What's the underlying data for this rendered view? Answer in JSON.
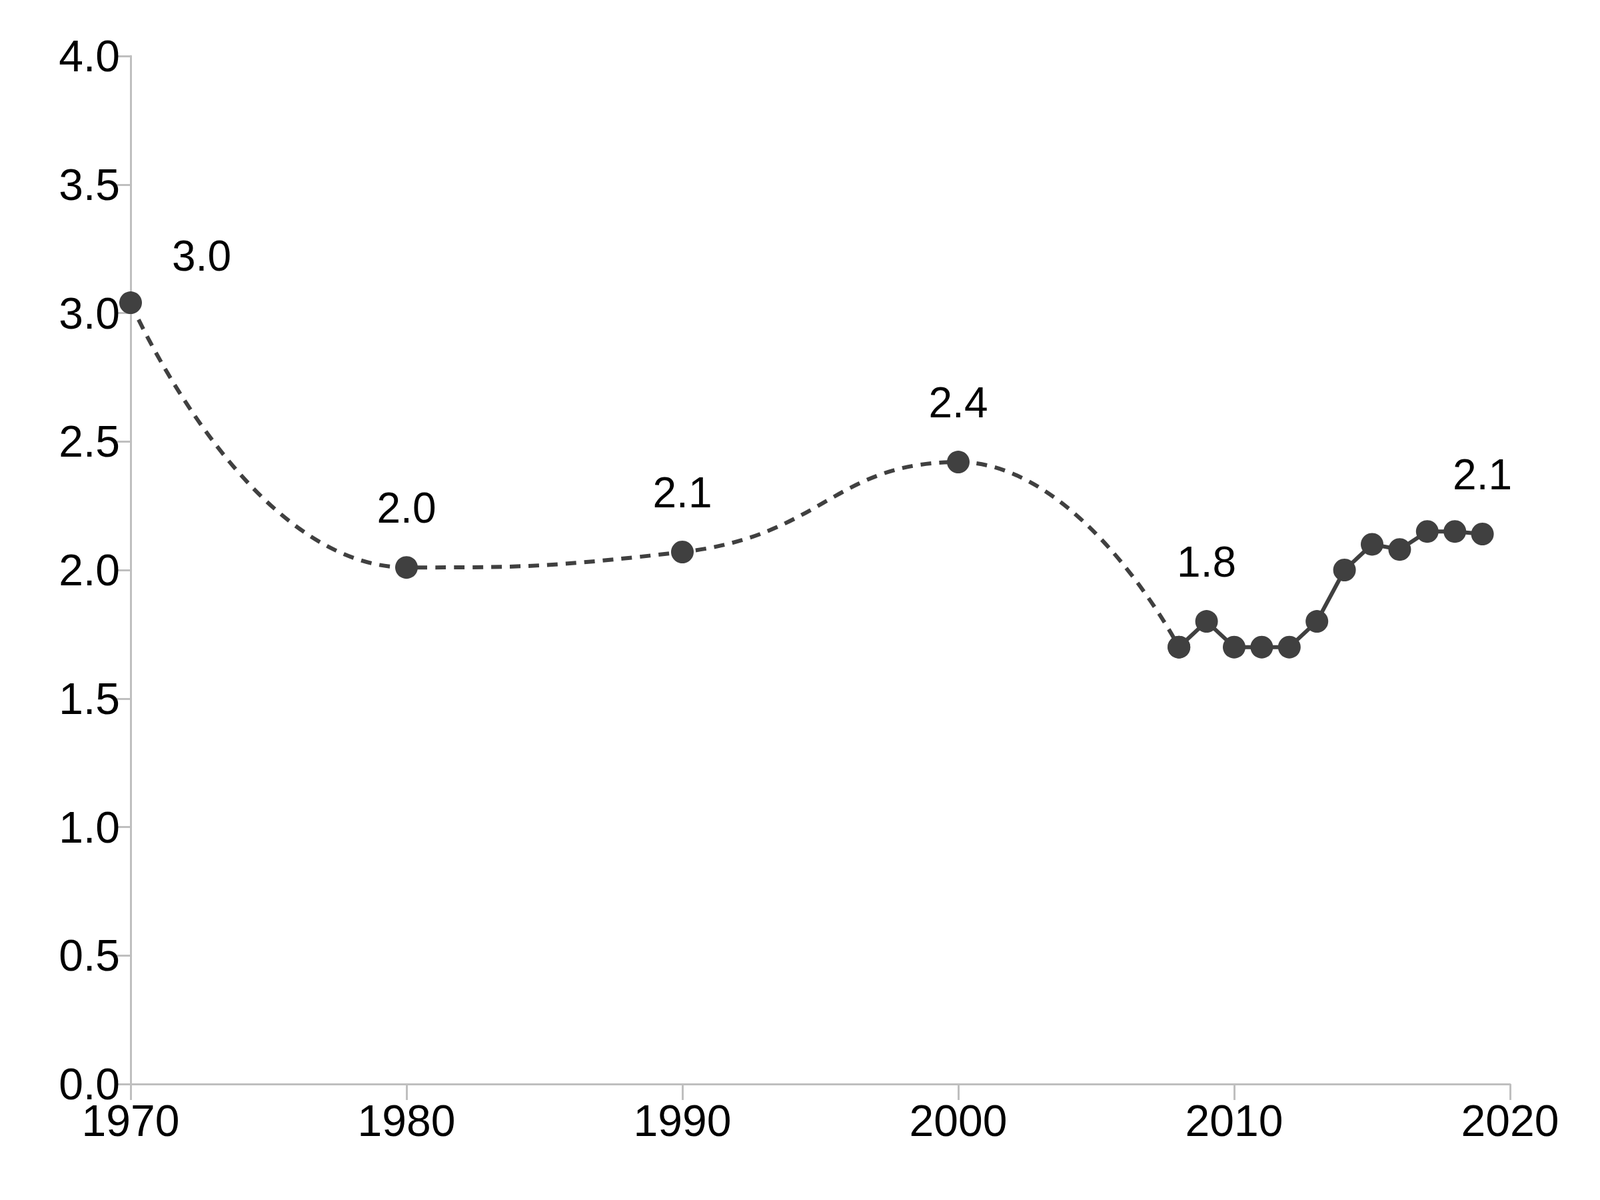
{
  "chart_data": {
    "type": "line",
    "xlim": [
      1970,
      2020
    ],
    "xticks": [
      1970,
      1980,
      1990,
      2000,
      2010,
      2020
    ],
    "ylim": [
      0,
      4
    ],
    "yticks": [
      {
        "value": 0,
        "label": "0.0"
      },
      0.5,
      {
        "value": 1,
        "label": "1.0"
      },
      1.5,
      {
        "value": 2,
        "label": "2.0"
      },
      2.5,
      {
        "value": 3,
        "label": "3.0"
      },
      3.5,
      {
        "value": 4,
        "label": "4.0"
      }
    ],
    "grid": false,
    "data_labels": true,
    "color": "#404040",
    "marker": "circle",
    "series": [
      {
        "line_style": "dashed",
        "smooth": true,
        "x": [
          1970,
          1980,
          1990,
          2000,
          2008
        ],
        "values": [
          3.04,
          2.01,
          2.07,
          2.42,
          1.7
        ],
        "value_labels": [
          "3.0",
          "2.0",
          "2.1",
          "2.4",
          null
        ]
      },
      {
        "line_style": "solid",
        "x": [
          2008,
          2009,
          2010,
          2011,
          2012,
          2013,
          2014,
          2015,
          2016,
          2017,
          2018,
          2019
        ],
        "values": [
          1.7,
          1.8,
          1.7,
          1.7,
          1.7,
          1.8,
          2.0,
          2.1,
          2.08,
          2.15,
          2.15,
          2.14
        ],
        "value_labels": [
          null,
          "1.8",
          null,
          null,
          null,
          null,
          null,
          null,
          null,
          null,
          null,
          "2.1"
        ]
      }
    ]
  }
}
